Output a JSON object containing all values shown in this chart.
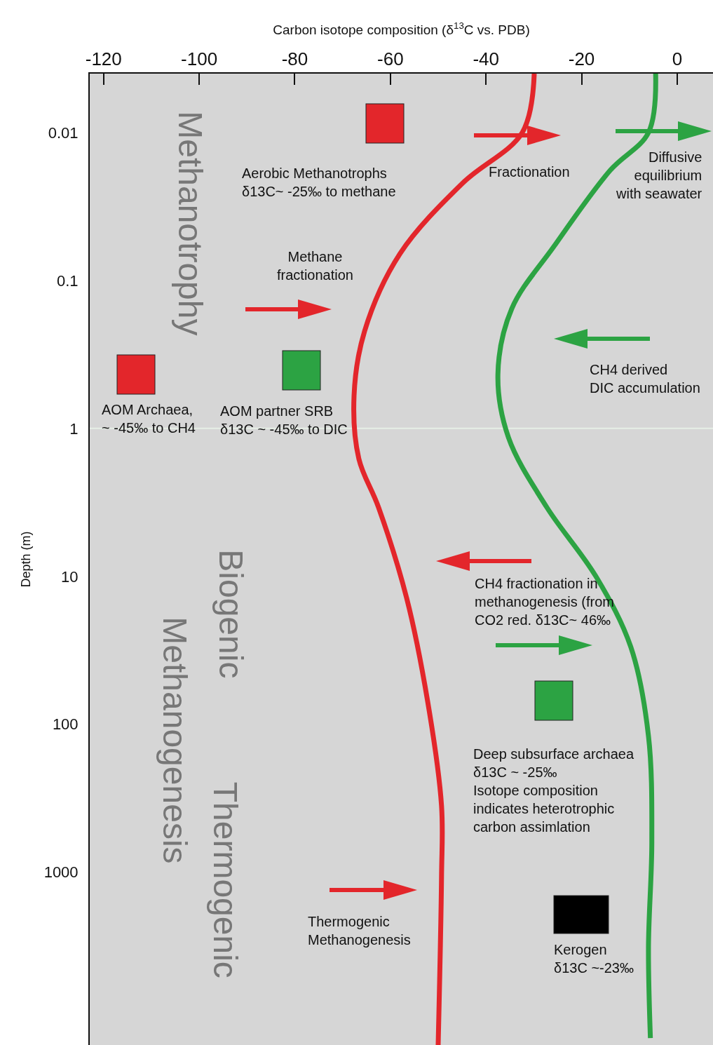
{
  "chart_data": {
    "type": "line",
    "xlabel": "Carbon isotope composition (δ$^{13}$C vs. PDB)",
    "ylabel": "Depth (m)",
    "xlim": [
      -122.9,
      7.5
    ],
    "xticks": [
      -120,
      -100,
      -80,
      -60,
      -40,
      -20,
      0
    ],
    "ylim": [
      14700,
      0.004
    ],
    "yticks": [
      0.01,
      0.1,
      1,
      10,
      100,
      1000
    ],
    "log": "y",
    "grid": false,
    "marker": "none",
    "line_style": "solid",
    "series": [
      {
        "color": "#e3262b",
        "x": [
          -29.9,
          -32.4,
          -44.9,
          -58,
          -65.4,
          -67.6,
          -66.6,
          -62.5,
          -56.6,
          -52.2,
          -49.3,
          -49.3,
          -50
        ],
        "values": [
          0.004,
          0.01,
          0.022,
          0.066,
          0.22,
          0.6,
          1.6,
          3.4,
          14,
          70,
          355,
          1070,
          14700
        ]
      },
      {
        "color": "#2ca343",
        "x": [
          -4.5,
          -6,
          -14,
          -25.8,
          -34.6,
          -37.5,
          -35.3,
          -27.3,
          -17,
          -9.7,
          -6,
          -5.3,
          -6,
          -5.6
        ],
        "values": [
          0.004,
          0.01,
          0.018,
          0.059,
          0.155,
          0.43,
          1.15,
          3.4,
          10,
          30,
          120,
          620,
          3200,
          13200
        ]
      }
    ],
    "ref_lines": [
      {
        "axis": "y",
        "value": 1,
        "color": "#e6efe6"
      }
    ],
    "annotations": [
      "Methanotrophy",
      "Biogenic",
      "Methanogenesis",
      "Thermogenic",
      "Aerobic Methanotrophs\nδ13C~ -25‰ to methane",
      "Fractionation",
      "Diffusive\nequilibrium\nwith seawater",
      "Methane\nfractionation",
      "CH4 derived\nDIC accumulation",
      "AOM Archaea,\n~ -45‰ to CH4",
      "AOM partner SRB\nδ13C ~ -45‰ to DIC",
      "CH4 fractionation in\nmethanogenesis (from\nCO2 red. δ13C~ 46‰",
      "Deep subsurface archaea\nδ13C ~ -25‰\nIsotope composition\nindicates heterotrophic\ncarbon assimlation",
      "Thermogenic\nMethanogenesis",
      "Kerogen\nδ13C ~-23‰"
    ]
  }
}
